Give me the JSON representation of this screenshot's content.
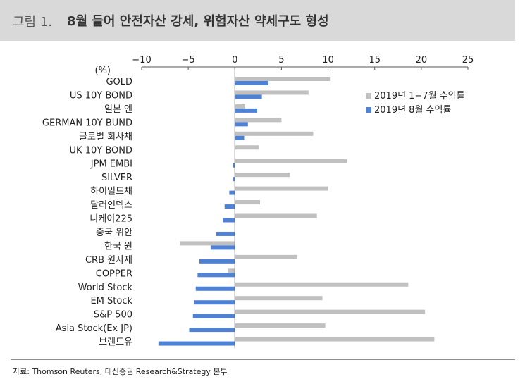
{
  "header": {
    "prefix": "그림 1.",
    "title": "8월 들어 안전자산 강세, 위험자산 약세구도 형성"
  },
  "source": "자료: Thomson Reuters, 대신증권 Research&Strategy 본부",
  "colors": {
    "series_gray": "#c0c0c0",
    "series_blue": "#4f81d4",
    "header_bg": "#d9d9d9"
  },
  "chart_data": {
    "type": "bar",
    "orientation": "horizontal",
    "unit_label": "(%)",
    "xlim": [
      -10,
      25
    ],
    "xticks": [
      "−10",
      "−5",
      "0",
      "5",
      "10",
      "15",
      "20",
      "25"
    ],
    "xtick_values": [
      -10,
      -5,
      0,
      5,
      10,
      15,
      20,
      25
    ],
    "axis_position": "top",
    "legend_position": "top-right",
    "grid": false,
    "categories": [
      "GOLD",
      "US 10Y BOND",
      "일본 엔",
      "GERMAN 10Y BUND",
      "글로벌 회사채",
      "UK 10Y BOND",
      "JPM EMBI",
      "SILVER",
      "하이일드채",
      "달러인덱스",
      "니케이225",
      "중국 위안",
      "한국 원",
      "CRB 원자재",
      "COPPER",
      "World Stock",
      "EM Stock",
      "S&P 500",
      "Asia Stock(Ex JP)",
      "브렌트유"
    ],
    "series": [
      {
        "name": "2019년 1-7월 수익률",
        "legend_label": "2019년 1−7월 수익률",
        "color": "#c0c0c0",
        "values": [
          10.2,
          7.9,
          1.1,
          5.0,
          8.4,
          2.6,
          12.0,
          5.9,
          10.0,
          2.7,
          8.8,
          0.0,
          -5.9,
          6.7,
          -0.7,
          18.6,
          9.4,
          20.4,
          9.7,
          21.4
        ]
      },
      {
        "name": "2019년 8월 수익률",
        "legend_label": "2019년 8월 수익률",
        "color": "#4f81d4",
        "values": [
          3.6,
          2.9,
          2.4,
          1.4,
          1.0,
          0.0,
          -0.2,
          -0.2,
          -0.6,
          -1.1,
          -1.3,
          -2.0,
          -2.6,
          -3.8,
          -4.0,
          -4.2,
          -4.4,
          -4.5,
          -4.9,
          -8.2
        ]
      }
    ]
  }
}
